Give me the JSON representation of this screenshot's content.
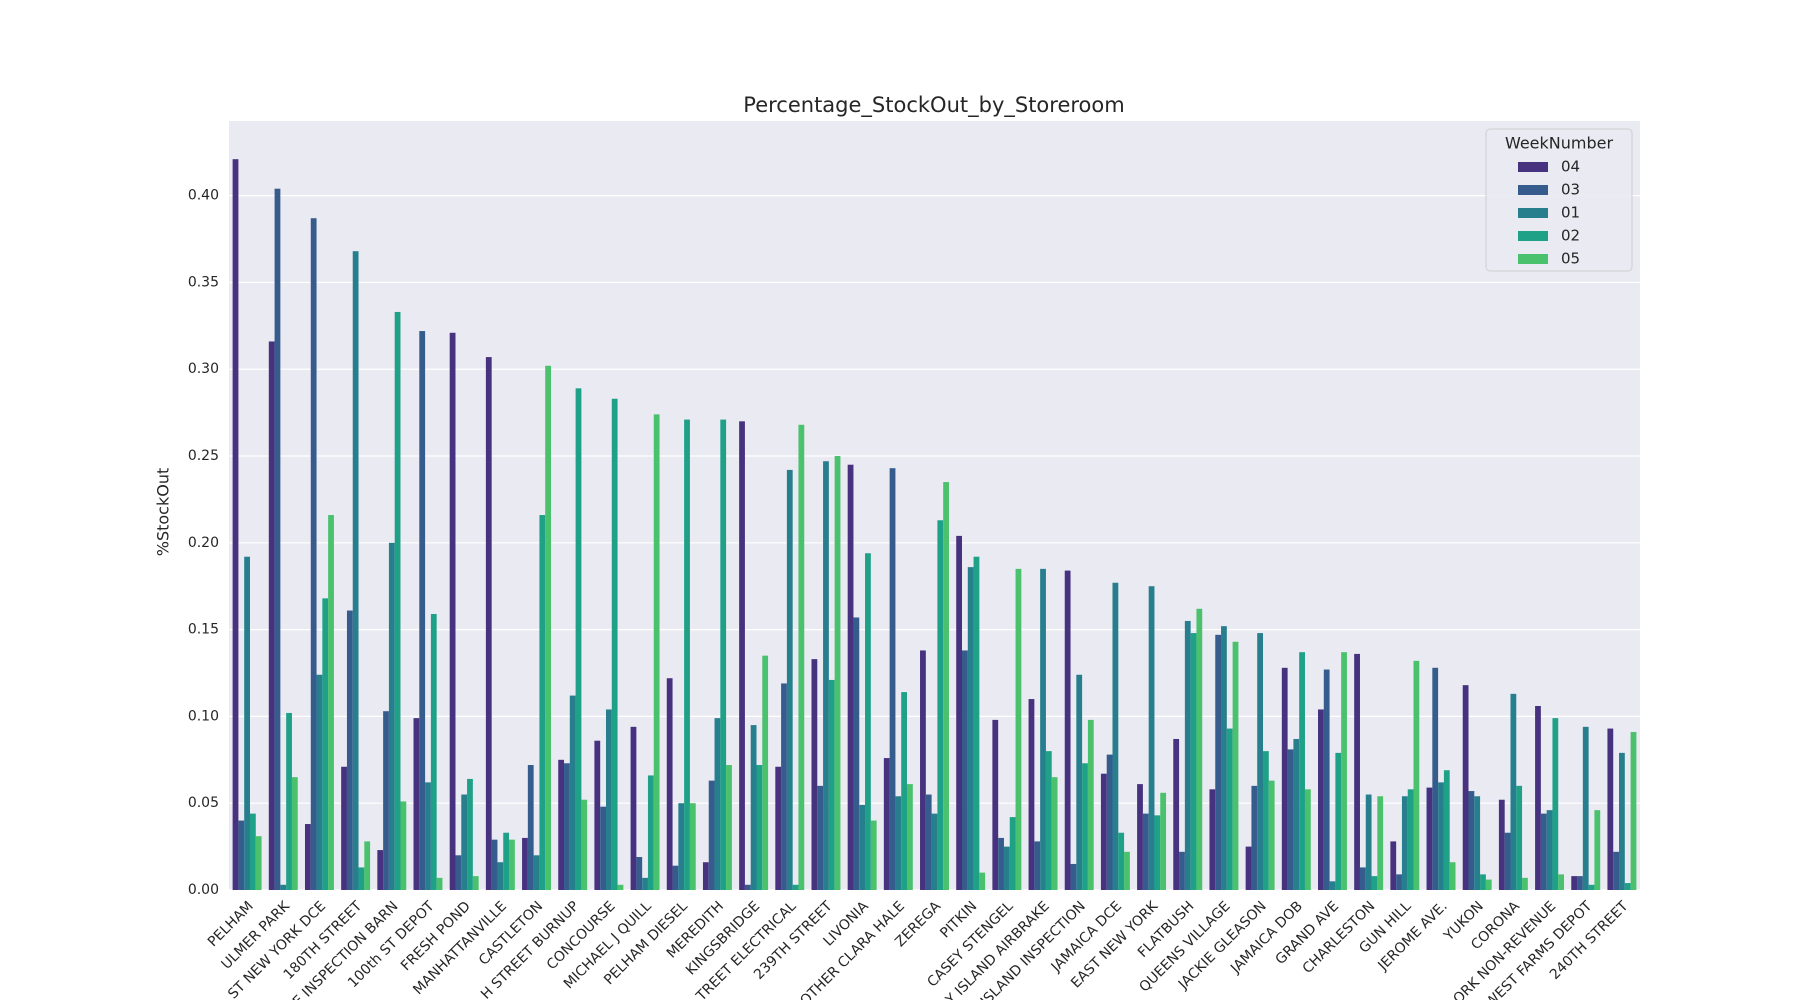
{
  "chart_data": {
    "type": "bar",
    "title": "Percentage_StockOut_by_Storeroom",
    "y_label": "%StockOut",
    "categories": [
      "PELHAM",
      "ULMER PARK",
      "ST NEW YORK DCE",
      "180TH STREET",
      "E INSPECTION BARN",
      "100th ST DEPOT",
      "FRESH POND",
      "MANHATTANVILLE",
      "CASTLETON",
      "H STREET BURNUP",
      "CONCOURSE",
      "MICHAEL J QUILL",
      "PELHAM DIESEL",
      "MEREDITH",
      "KINGSBRIDGE",
      "TREET ELECTRICAL",
      "239TH STREET",
      "LIVONIA",
      "OTHER CLARA HALE",
      "ZEREGA",
      "PITKIN",
      "CASEY STENGEL",
      "Y ISLAND AIRBRAKE",
      "ISLAND  INSPECTION",
      "JAMAICA DCE",
      "EAST NEW YORK",
      "FLATBUSH",
      "QUEENS VILLAGE",
      "JACKIE GLEASON",
      "JAMAICA DOB",
      "GRAND AVE",
      "CHARLESTON",
      "GUN HILL",
      "JEROME AVE.",
      "YUKON",
      "CORONA",
      "ORK NON-REVENUE",
      "WEST FARMS DEPOT",
      "240TH STREET"
    ],
    "series": [
      {
        "name": "04",
        "color": "#46327e",
        "values": [
          0.421,
          0.316,
          0.038,
          0.071,
          0.023,
          0.099,
          0.321,
          0.307,
          0.03,
          0.075,
          0.086,
          0.094,
          0.122,
          0.016,
          0.27,
          0.071,
          0.133,
          0.245,
          0.076,
          0.138,
          0.204,
          0.098,
          0.11,
          0.184,
          0.067,
          0.061,
          0.087,
          0.058,
          0.025,
          0.128,
          0.104,
          0.136,
          0.028,
          0.059,
          0.118,
          0.052,
          0.106,
          0.008,
          0.093
        ]
      },
      {
        "name": "03",
        "color": "#365c8d",
        "values": [
          0.04,
          0.404,
          0.387,
          0.161,
          0.103,
          0.322,
          0.02,
          0.029,
          0.072,
          0.073,
          0.048,
          0.019,
          0.014,
          0.063,
          0.003,
          0.119,
          0.06,
          0.157,
          0.243,
          0.055,
          0.138,
          0.03,
          0.028,
          0.015,
          0.078,
          0.044,
          0.022,
          0.147,
          0.06,
          0.081,
          0.127,
          0.013,
          0.009,
          0.128,
          0.057,
          0.033,
          0.044,
          0.008,
          0.022
        ]
      },
      {
        "name": "01",
        "color": "#277f8e",
        "values": [
          0.192,
          0.003,
          0.124,
          0.368,
          0.2,
          0.062,
          0.055,
          0.016,
          0.02,
          0.112,
          0.104,
          0.007,
          0.05,
          0.099,
          0.095,
          0.242,
          0.247,
          0.049,
          0.054,
          0.044,
          0.186,
          0.025,
          0.185,
          0.124,
          0.177,
          0.175,
          0.155,
          0.152,
          0.148,
          0.087,
          0.005,
          0.055,
          0.054,
          0.062,
          0.054,
          0.113,
          0.046,
          0.094,
          0.079
        ]
      },
      {
        "name": "02",
        "color": "#1fa187",
        "values": [
          0.044,
          0.102,
          0.168,
          0.013,
          0.333,
          0.159,
          0.064,
          0.033,
          0.216,
          0.289,
          0.283,
          0.066,
          0.271,
          0.271,
          0.072,
          0.003,
          0.121,
          0.194,
          0.114,
          0.213,
          0.192,
          0.042,
          0.08,
          0.073,
          0.033,
          0.043,
          0.148,
          0.093,
          0.08,
          0.137,
          0.079,
          0.008,
          0.058,
          0.069,
          0.009,
          0.06,
          0.099,
          0.003,
          0.004
        ]
      },
      {
        "name": "05",
        "color": "#4ac16d",
        "values": [
          0.031,
          0.065,
          0.216,
          0.028,
          0.051,
          0.007,
          0.008,
          0.029,
          0.302,
          0.052,
          0.003,
          0.274,
          0.05,
          0.072,
          0.135,
          0.268,
          0.25,
          0.04,
          0.061,
          0.235,
          0.01,
          0.185,
          0.065,
          0.098,
          0.022,
          0.056,
          0.162,
          0.143,
          0.063,
          0.058,
          0.137,
          0.054,
          0.132,
          0.016,
          0.006,
          0.007,
          0.009,
          0.046,
          0.091
        ]
      }
    ],
    "ylim": [
      0,
      0.443
    ],
    "yticks": [
      {
        "value": 0,
        "label": "0.00"
      },
      0.05,
      {
        "value": 0.1,
        "label": "0.10"
      },
      0.15,
      {
        "value": 0.2,
        "label": "0.20"
      },
      0.25,
      {
        "value": 0.3,
        "label": "0.30"
      },
      0.35,
      {
        "value": 0.4,
        "label": "0.40"
      }
    ],
    "grid": true,
    "legend_title": "WeekNumber",
    "legend_loc": "upper right"
  }
}
